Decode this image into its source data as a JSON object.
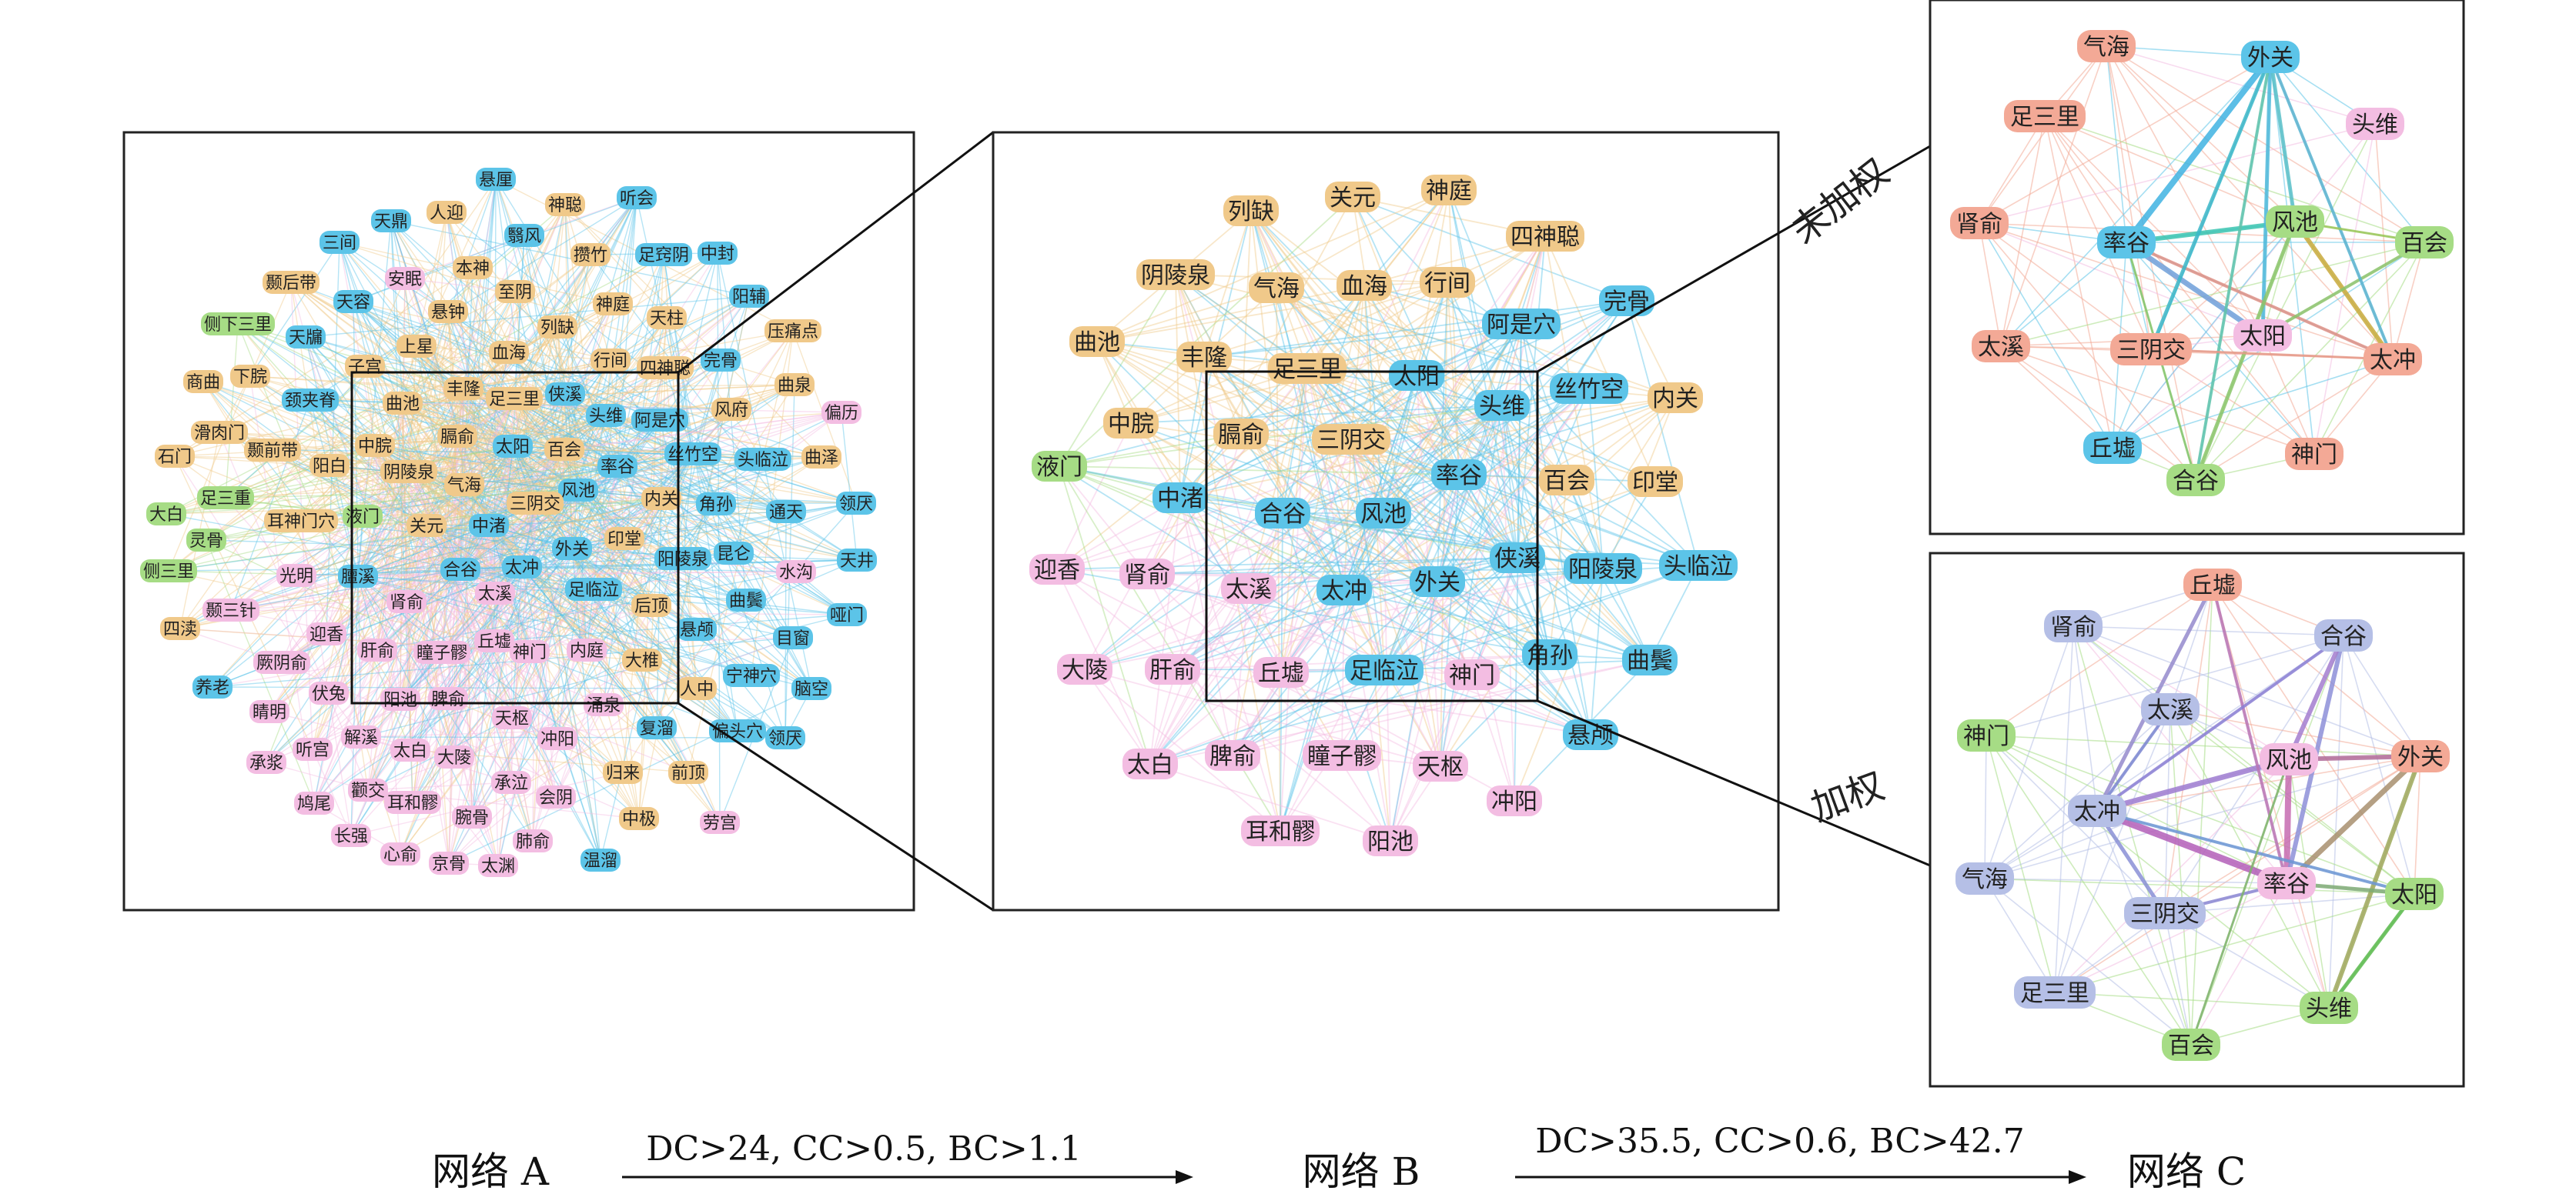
{
  "colors": {
    "orange": "#f0c98a",
    "blue": "#5cc4e8",
    "pink": "#f3bde2",
    "green": "#a6dc85",
    "salmon": "#f3a996",
    "lavender": "#b5bfe6",
    "frame": "#222222"
  },
  "network_a": {
    "nodes": [
      {
        "label": "悬厘",
        "c": "blue"
      },
      {
        "label": "神聪",
        "c": "orange"
      },
      {
        "label": "听会",
        "c": "blue"
      },
      {
        "label": "天鼎",
        "c": "blue"
      },
      {
        "label": "人迎",
        "c": "orange"
      },
      {
        "label": "翳风",
        "c": "blue"
      },
      {
        "label": "三间",
        "c": "blue"
      },
      {
        "label": "本神",
        "c": "orange"
      },
      {
        "label": "攒竹",
        "c": "orange"
      },
      {
        "label": "足窍阴",
        "c": "blue"
      },
      {
        "label": "中封",
        "c": "blue"
      },
      {
        "label": "颞后带",
        "c": "orange"
      },
      {
        "label": "安眠",
        "c": "pink"
      },
      {
        "label": "至阴",
        "c": "orange"
      },
      {
        "label": "神庭",
        "c": "orange"
      },
      {
        "label": "天柱",
        "c": "orange"
      },
      {
        "label": "阳辅",
        "c": "blue"
      },
      {
        "label": "天容",
        "c": "blue"
      },
      {
        "label": "悬钟",
        "c": "orange"
      },
      {
        "label": "侧下三里",
        "c": "green"
      },
      {
        "label": "列缺",
        "c": "orange"
      },
      {
        "label": "压痛点",
        "c": "orange"
      },
      {
        "label": "天牖",
        "c": "blue"
      },
      {
        "label": "上星",
        "c": "orange"
      },
      {
        "label": "血海",
        "c": "orange"
      },
      {
        "label": "行间",
        "c": "orange"
      },
      {
        "label": "四神聪",
        "c": "orange"
      },
      {
        "label": "完骨",
        "c": "blue"
      },
      {
        "label": "子宫",
        "c": "orange"
      },
      {
        "label": "商曲",
        "c": "orange"
      },
      {
        "label": "下脘",
        "c": "orange"
      },
      {
        "label": "丰隆",
        "c": "orange"
      },
      {
        "label": "侠溪",
        "c": "blue"
      },
      {
        "label": "曲泉",
        "c": "orange"
      },
      {
        "label": "颈夹脊",
        "c": "blue"
      },
      {
        "label": "曲池",
        "c": "orange"
      },
      {
        "label": "足三里",
        "c": "orange"
      },
      {
        "label": "头维",
        "c": "blue"
      },
      {
        "label": "阿是穴",
        "c": "blue"
      },
      {
        "label": "风府",
        "c": "orange"
      },
      {
        "label": "偏历",
        "c": "pink"
      },
      {
        "label": "滑肉门",
        "c": "orange"
      },
      {
        "label": "膈俞",
        "c": "orange"
      },
      {
        "label": "太阳",
        "c": "blue"
      },
      {
        "label": "百会",
        "c": "orange"
      },
      {
        "label": "石门",
        "c": "orange"
      },
      {
        "label": "颞前带",
        "c": "orange"
      },
      {
        "label": "中脘",
        "c": "orange"
      },
      {
        "label": "率谷",
        "c": "blue"
      },
      {
        "label": "丝竹空",
        "c": "blue"
      },
      {
        "label": "头临泣",
        "c": "blue"
      },
      {
        "label": "曲泽",
        "c": "orange"
      },
      {
        "label": "阳白",
        "c": "orange"
      },
      {
        "label": "阴陵泉",
        "c": "orange"
      },
      {
        "label": "气海",
        "c": "orange"
      },
      {
        "label": "风池",
        "c": "blue"
      },
      {
        "label": "足三重",
        "c": "green"
      },
      {
        "label": "三阴交",
        "c": "orange"
      },
      {
        "label": "内关",
        "c": "orange"
      },
      {
        "label": "角孙",
        "c": "blue"
      },
      {
        "label": "通天",
        "c": "blue"
      },
      {
        "label": "领厌",
        "c": "blue"
      },
      {
        "label": "大白",
        "c": "green"
      },
      {
        "label": "耳神门穴",
        "c": "orange"
      },
      {
        "label": "液门",
        "c": "green"
      },
      {
        "label": "关元",
        "c": "orange"
      },
      {
        "label": "中渚",
        "c": "blue"
      },
      {
        "label": "印堂",
        "c": "orange"
      },
      {
        "label": "天井",
        "c": "blue"
      },
      {
        "label": "灵骨",
        "c": "green"
      },
      {
        "label": "外关",
        "c": "blue"
      },
      {
        "label": "阳陵泉",
        "c": "blue"
      },
      {
        "label": "昆仑",
        "c": "blue"
      },
      {
        "label": "侧三里",
        "c": "green"
      },
      {
        "label": "光明",
        "c": "pink"
      },
      {
        "label": "膻溪",
        "c": "blue"
      },
      {
        "label": "合谷",
        "c": "blue"
      },
      {
        "label": "太冲",
        "c": "blue"
      },
      {
        "label": "足临泣",
        "c": "blue"
      },
      {
        "label": "水沟",
        "c": "pink"
      },
      {
        "label": "曲鬓",
        "c": "blue"
      },
      {
        "label": "太溪",
        "c": "pink"
      },
      {
        "label": "肾俞",
        "c": "pink"
      },
      {
        "label": "后顶",
        "c": "orange"
      },
      {
        "label": "四渎",
        "c": "orange"
      },
      {
        "label": "颞三针",
        "c": "pink"
      },
      {
        "label": "哑门",
        "c": "blue"
      },
      {
        "label": "目窗",
        "c": "blue"
      },
      {
        "label": "迎香",
        "c": "pink"
      },
      {
        "label": "悬颅",
        "c": "blue"
      },
      {
        "label": "丘墟",
        "c": "pink"
      },
      {
        "label": "肝俞",
        "c": "pink"
      },
      {
        "label": "瞳子髎",
        "c": "pink"
      },
      {
        "label": "厥阴俞",
        "c": "pink"
      },
      {
        "label": "神门",
        "c": "pink"
      },
      {
        "label": "内庭",
        "c": "pink"
      },
      {
        "label": "大椎",
        "c": "orange"
      },
      {
        "label": "宁神穴",
        "c": "blue"
      },
      {
        "label": "养老",
        "c": "blue"
      },
      {
        "label": "伏兔",
        "c": "pink"
      },
      {
        "label": "脑空",
        "c": "blue"
      },
      {
        "label": "人中",
        "c": "orange"
      },
      {
        "label": "阳池",
        "c": "pink"
      },
      {
        "label": "脾俞",
        "c": "pink"
      },
      {
        "label": "涌泉",
        "c": "pink"
      },
      {
        "label": "睛明",
        "c": "pink"
      },
      {
        "label": "天枢",
        "c": "pink"
      },
      {
        "label": "复溜",
        "c": "blue"
      },
      {
        "label": "解溪",
        "c": "pink"
      },
      {
        "label": "偏头穴",
        "c": "blue"
      },
      {
        "label": "领厌",
        "c": "blue"
      },
      {
        "label": "承浆",
        "c": "pink"
      },
      {
        "label": "听宫",
        "c": "pink"
      },
      {
        "label": "冲阳",
        "c": "pink"
      },
      {
        "label": "太白",
        "c": "pink"
      },
      {
        "label": "大陵",
        "c": "pink"
      },
      {
        "label": "归来",
        "c": "orange"
      },
      {
        "label": "前顶",
        "c": "orange"
      },
      {
        "label": "颧交",
        "c": "pink"
      },
      {
        "label": "承泣",
        "c": "pink"
      },
      {
        "label": "鸠尾",
        "c": "pink"
      },
      {
        "label": "耳和髎",
        "c": "pink"
      },
      {
        "label": "会阴",
        "c": "pink"
      },
      {
        "label": "腕骨",
        "c": "pink"
      },
      {
        "label": "中极",
        "c": "orange"
      },
      {
        "label": "劳宫",
        "c": "pink"
      },
      {
        "label": "长强",
        "c": "pink"
      },
      {
        "label": "肺俞",
        "c": "pink"
      },
      {
        "label": "心俞",
        "c": "pink"
      },
      {
        "label": "京骨",
        "c": "pink"
      },
      {
        "label": "太渊",
        "c": "pink"
      },
      {
        "label": "温溜",
        "c": "blue"
      }
    ]
  },
  "network_b": {
    "nodes": [
      {
        "label": "列缺",
        "c": "orange"
      },
      {
        "label": "关元",
        "c": "orange"
      },
      {
        "label": "神庭",
        "c": "orange"
      },
      {
        "label": "四神聪",
        "c": "orange"
      },
      {
        "label": "阴陵泉",
        "c": "orange"
      },
      {
        "label": "气海",
        "c": "orange"
      },
      {
        "label": "血海",
        "c": "orange"
      },
      {
        "label": "行间",
        "c": "orange"
      },
      {
        "label": "阿是穴",
        "c": "blue"
      },
      {
        "label": "完骨",
        "c": "blue"
      },
      {
        "label": "曲池",
        "c": "orange"
      },
      {
        "label": "丰隆",
        "c": "orange"
      },
      {
        "label": "足三里",
        "c": "orange"
      },
      {
        "label": "太阳",
        "c": "blue"
      },
      {
        "label": "头维",
        "c": "blue"
      },
      {
        "label": "丝竹空",
        "c": "blue"
      },
      {
        "label": "内关",
        "c": "orange"
      },
      {
        "label": "中脘",
        "c": "orange"
      },
      {
        "label": "膈俞",
        "c": "orange"
      },
      {
        "label": "三阴交",
        "c": "orange"
      },
      {
        "label": "液门",
        "c": "green"
      },
      {
        "label": "率谷",
        "c": "blue"
      },
      {
        "label": "百会",
        "c": "orange"
      },
      {
        "label": "印堂",
        "c": "orange"
      },
      {
        "label": "中渚",
        "c": "blue"
      },
      {
        "label": "合谷",
        "c": "blue"
      },
      {
        "label": "风池",
        "c": "blue"
      },
      {
        "label": "迎香",
        "c": "pink"
      },
      {
        "label": "肾俞",
        "c": "pink"
      },
      {
        "label": "侠溪",
        "c": "blue"
      },
      {
        "label": "阳陵泉",
        "c": "blue"
      },
      {
        "label": "头临泣",
        "c": "blue"
      },
      {
        "label": "太溪",
        "c": "pink"
      },
      {
        "label": "太冲",
        "c": "blue"
      },
      {
        "label": "外关",
        "c": "blue"
      },
      {
        "label": "大陵",
        "c": "pink"
      },
      {
        "label": "肝俞",
        "c": "pink"
      },
      {
        "label": "丘墟",
        "c": "pink"
      },
      {
        "label": "足临泣",
        "c": "blue"
      },
      {
        "label": "神门",
        "c": "pink"
      },
      {
        "label": "角孙",
        "c": "blue"
      },
      {
        "label": "曲鬓",
        "c": "blue"
      },
      {
        "label": "悬颅",
        "c": "blue"
      },
      {
        "label": "太白",
        "c": "pink"
      },
      {
        "label": "脾俞",
        "c": "pink"
      },
      {
        "label": "瞳子髎",
        "c": "pink"
      },
      {
        "label": "天枢",
        "c": "pink"
      },
      {
        "label": "冲阳",
        "c": "pink"
      },
      {
        "label": "耳和髎",
        "c": "pink"
      },
      {
        "label": "阳池",
        "c": "pink"
      }
    ]
  },
  "network_c_unweighted": {
    "label": "未加权",
    "nodes": [
      {
        "label": "气海",
        "c": "salmon"
      },
      {
        "label": "外关",
        "c": "blue"
      },
      {
        "label": "足三里",
        "c": "salmon"
      },
      {
        "label": "头维",
        "c": "pink"
      },
      {
        "label": "肾俞",
        "c": "salmon"
      },
      {
        "label": "风池",
        "c": "green"
      },
      {
        "label": "率谷",
        "c": "blue"
      },
      {
        "label": "百会",
        "c": "green"
      },
      {
        "label": "太溪",
        "c": "salmon"
      },
      {
        "label": "三阴交",
        "c": "salmon"
      },
      {
        "label": "太阳",
        "c": "pink"
      },
      {
        "label": "太冲",
        "c": "salmon"
      },
      {
        "label": "丘墟",
        "c": "blue"
      },
      {
        "label": "神门",
        "c": "salmon"
      },
      {
        "label": "合谷",
        "c": "green"
      }
    ]
  },
  "network_c_weighted": {
    "label": "加权",
    "nodes": [
      {
        "label": "丘墟",
        "c": "salmon"
      },
      {
        "label": "肾俞",
        "c": "lavender"
      },
      {
        "label": "合谷",
        "c": "lavender"
      },
      {
        "label": "太溪",
        "c": "lavender"
      },
      {
        "label": "神门",
        "c": "green"
      },
      {
        "label": "风池",
        "c": "pink"
      },
      {
        "label": "外关",
        "c": "salmon"
      },
      {
        "label": "太冲",
        "c": "lavender"
      },
      {
        "label": "气海",
        "c": "lavender"
      },
      {
        "label": "率谷",
        "c": "pink"
      },
      {
        "label": "太阳",
        "c": "green"
      },
      {
        "label": "三阴交",
        "c": "lavender"
      },
      {
        "label": "足三里",
        "c": "lavender"
      },
      {
        "label": "百会",
        "c": "green"
      },
      {
        "label": "头维",
        "c": "green"
      }
    ]
  },
  "flow": {
    "net_a": "网络 A",
    "arrow1": "DC>24, CC>0.5, BC>1.1",
    "net_b": "网络 B",
    "arrow2": "DC>35.5, CC>0.6, BC>42.7",
    "net_c": "网络 C"
  }
}
